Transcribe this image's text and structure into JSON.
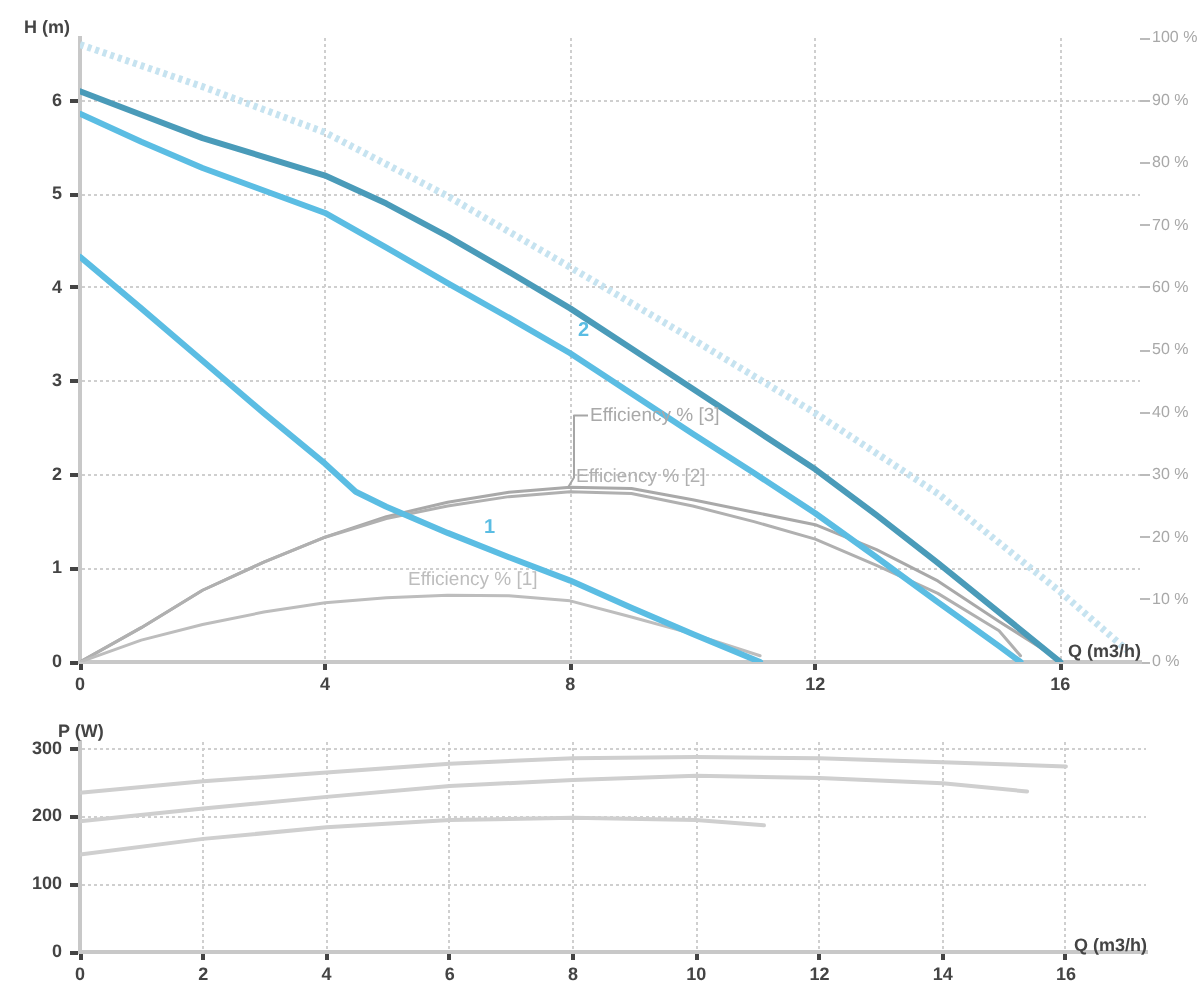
{
  "chart_data": [
    {
      "type": "line",
      "xlabel": "Q (m3/h)",
      "ylabel": "H (m)",
      "xlim": [
        0,
        17.3
      ],
      "xticks": [
        0,
        4,
        8,
        12,
        16
      ],
      "ylim": [
        0,
        6.67
      ],
      "yticks": [
        0,
        1,
        2,
        3,
        4,
        5,
        6
      ],
      "y2lim": [
        0,
        100
      ],
      "y2ticks": [
        {
          "value": 0,
          "label": "0 %"
        },
        {
          "value": 10,
          "label": "10 %"
        },
        {
          "value": 20,
          "label": "20 %"
        },
        {
          "value": 30,
          "label": "30 %"
        },
        {
          "value": 40,
          "label": "40 %"
        },
        {
          "value": 50,
          "label": "50 %"
        },
        {
          "value": 60,
          "label": "60 %"
        },
        {
          "value": 70,
          "label": "70 %"
        },
        {
          "value": 80,
          "label": "80 %"
        },
        {
          "value": 90,
          "label": "90 %"
        },
        {
          "value": 100,
          "label": "100 %"
        }
      ],
      "grid": true,
      "legend": false,
      "marker": "none",
      "series": [
        {
          "name": "1",
          "color": "#5bbde3",
          "x": [
            0,
            1,
            2,
            3,
            4,
            4.5,
            5,
            6,
            7,
            8,
            9,
            10,
            11.1
          ],
          "values": [
            4.33,
            3.78,
            3.22,
            2.66,
            2.12,
            1.82,
            1.66,
            1.38,
            1.12,
            0.87,
            0.58,
            0.3,
            0
          ]
        },
        {
          "name": "2",
          "color": "#5bbde3",
          "x": [
            0,
            1,
            2,
            3,
            4,
            5,
            6,
            7,
            8,
            9,
            10,
            11,
            12,
            13,
            14,
            15,
            15.35
          ],
          "values": [
            5.86,
            5.56,
            5.28,
            5.04,
            4.8,
            4.43,
            4.05,
            3.68,
            3.3,
            2.87,
            2.44,
            2.02,
            1.59,
            1.12,
            0.64,
            0.17,
            0
          ]
        },
        {
          "color": "#4a9bb9",
          "x": [
            0,
            1,
            2,
            3,
            4,
            5,
            6,
            7,
            8,
            9,
            10,
            11,
            12,
            13,
            14,
            15,
            16
          ],
          "values": [
            6.1,
            5.85,
            5.6,
            5.4,
            5.2,
            4.9,
            4.55,
            4.17,
            3.78,
            3.35,
            2.92,
            2.49,
            2.06,
            1.57,
            1.06,
            0.53,
            0
          ]
        },
        {
          "color": "#c6e3f0",
          "line_style": "dotted",
          "x": [
            0,
            2,
            4,
            6,
            8,
            10,
            12,
            14,
            16,
            17.1
          ],
          "values": [
            6.6,
            6.15,
            5.66,
            4.98,
            4.22,
            3.45,
            2.66,
            1.8,
            0.75,
            0.12
          ]
        },
        {
          "name": "Efficiency % [1]",
          "color": "#bdbdbd",
          "axis": "y2",
          "x": [
            0,
            1,
            2,
            3,
            4,
            5,
            6,
            7,
            8,
            9,
            10,
            11.1
          ],
          "values": [
            0,
            3.5,
            6,
            8,
            9.5,
            10.3,
            10.7,
            10.6,
            9.8,
            7.2,
            4.5,
            1
          ]
        },
        {
          "name": "Efficiency % [2]",
          "color": "#b0b0b0",
          "axis": "y2",
          "x": [
            0,
            1,
            2,
            3,
            4,
            5,
            6,
            7,
            8,
            9,
            10,
            11,
            12,
            13,
            14,
            15,
            15.35
          ],
          "values": [
            0,
            5.5,
            11.5,
            16,
            20,
            23,
            25,
            26.5,
            27.3,
            27,
            25,
            22.5,
            19.7,
            15.5,
            11,
            5,
            1
          ]
        },
        {
          "name": "Efficiency % [3]",
          "color": "#a9a9a9",
          "axis": "y2",
          "x": [
            0,
            1,
            2,
            3,
            4,
            5,
            6,
            7,
            8,
            9,
            10,
            11,
            12,
            13,
            14,
            15,
            16
          ],
          "values": [
            0,
            5.5,
            11.5,
            16,
            20,
            23.3,
            25.6,
            27.2,
            28,
            27.8,
            26,
            24,
            22,
            18,
            13,
            6.5,
            0.3
          ]
        }
      ]
    },
    {
      "type": "line",
      "xlabel": "Q (m3/h)",
      "ylabel": "P (W)",
      "xlim": [
        0,
        17.3
      ],
      "xticks": [
        0,
        2,
        4,
        6,
        8,
        10,
        12,
        14,
        16
      ],
      "ylim": [
        0,
        310
      ],
      "yticks": [
        0,
        100,
        200,
        300
      ],
      "grid": true,
      "legend": false,
      "marker": "none",
      "series": [
        {
          "color": "#cfcfcf",
          "x": [
            0,
            2,
            4,
            6,
            8,
            10,
            12,
            14,
            16
          ],
          "values": [
            235,
            252,
            265,
            278,
            286,
            288,
            286,
            280,
            274
          ]
        },
        {
          "color": "#cfcfcf",
          "x": [
            0,
            2,
            4,
            6,
            8,
            10,
            12,
            14,
            15.37
          ],
          "values": [
            193,
            212,
            229,
            245,
            254,
            260,
            257,
            249,
            237
          ]
        },
        {
          "color": "#cfcfcf",
          "x": [
            0,
            2,
            4,
            6,
            8,
            10,
            11.1
          ],
          "values": [
            144,
            167,
            184,
            195,
            198,
            195,
            187
          ]
        }
      ]
    }
  ]
}
